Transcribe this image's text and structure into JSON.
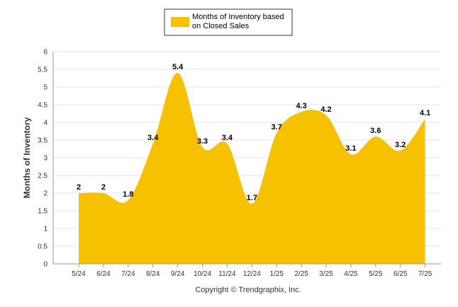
{
  "chart_data": {
    "type": "area",
    "categories": [
      "5/24",
      "6/24",
      "7/24",
      "8/24",
      "9/24",
      "10/24",
      "11/24",
      "12/24",
      "1/25",
      "2/25",
      "3/25",
      "4/25",
      "5/25",
      "6/25",
      "7/25"
    ],
    "series": [
      {
        "name": "Months of Inventory based on Closed Sales",
        "values": [
          2,
          2,
          1.8,
          3.4,
          5.4,
          3.3,
          3.4,
          1.7,
          3.7,
          4.3,
          4.2,
          3.1,
          3.6,
          3.2,
          4.1
        ]
      }
    ],
    "legend_lines": [
      "Months of Inventory based",
      "on Closed Sales"
    ],
    "ylabel": "Months of Inventory",
    "xlabel": "",
    "ylim": [
      0,
      6
    ],
    "yticks": [
      "0",
      "0.5",
      "1",
      "1.5",
      "2",
      "2.5",
      "3",
      "3.5",
      "4",
      "4.5",
      "5",
      "5.5",
      "6"
    ],
    "grid": true,
    "legend_position": "top-center",
    "color": "#F5C100"
  },
  "footer": "Copyright © Trendgraphix, Inc."
}
